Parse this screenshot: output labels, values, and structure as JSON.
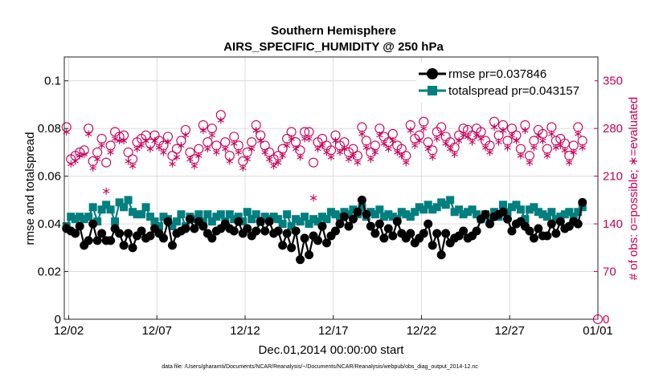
{
  "chart_data": {
    "type": "line",
    "title": "Southern Hemisphere",
    "subtitle": "AIRS_SPECIFIC_HUMIDITY @ 250 hPa",
    "xlabel": "Dec.01,2014 00:00:00 start",
    "ylabel_left": "rmse and totalspread",
    "ylabel_right": "# of obs: o=possible; ∗=evaluated",
    "footnote": "data file: /Users/gharamti/Documents/NCAR/Reanalysis/~/Documents/NCAR/Reanalysis/webpub/obs_diag_output_2014-12.nc",
    "x_ticks": [
      "12/02",
      "12/07",
      "12/12",
      "12/17",
      "12/22",
      "12/27",
      "01/01"
    ],
    "x_tick_days": [
      1,
      6,
      11,
      16,
      21,
      26,
      31
    ],
    "xlim_days": [
      0.75,
      31
    ],
    "ylim_left": [
      0,
      0.11
    ],
    "yticks_left": [
      "0",
      "0.02",
      "0.04",
      "0.06",
      "0.08",
      "0.1"
    ],
    "ylim_right": [
      0,
      385
    ],
    "yticks_right": [
      "0",
      "70",
      "140",
      "210",
      "280",
      "350"
    ],
    "grid": true,
    "legend_position": "top-right",
    "legend": [
      {
        "label": "rmse pr=0.037846",
        "color": "#000000",
        "marker": "circle"
      },
      {
        "label": "totalspread pr=0.043157",
        "color": "#007f7f",
        "marker": "square"
      }
    ],
    "colors": {
      "rmse": "#000000",
      "spread": "#007f7f",
      "obs": "#c8005a",
      "right_axis": "#c8005a"
    },
    "obs_step_days": 0.25,
    "obs_first_day": 0.875,
    "rmse": [
      0.038,
      0.037,
      0.036,
      0.039,
      0.031,
      0.033,
      0.04,
      0.033,
      0.036,
      0.033,
      0.033,
      0.038,
      0.036,
      0.031,
      0.036,
      0.03,
      0.035,
      0.037,
      0.034,
      0.035,
      0.038,
      0.036,
      0.034,
      0.041,
      0.031,
      0.036,
      0.037,
      0.038,
      0.042,
      0.038,
      0.041,
      0.039,
      0.036,
      0.034,
      0.037,
      0.038,
      0.04,
      0.038,
      0.037,
      0.041,
      0.036,
      0.038,
      0.035,
      0.037,
      0.041,
      0.037,
      0.041,
      0.036,
      0.037,
      0.031,
      0.036,
      0.03,
      0.037,
      0.025,
      0.034,
      0.027,
      0.035,
      0.033,
      0.039,
      0.032,
      0.035,
      0.037,
      0.04,
      0.043,
      0.039,
      0.042,
      0.045,
      0.05,
      0.044,
      0.039,
      0.036,
      0.04,
      0.034,
      0.038,
      0.035,
      0.041,
      0.036,
      0.034,
      0.036,
      0.032,
      0.034,
      0.036,
      0.04,
      0.031,
      0.036,
      0.027,
      0.036,
      0.032,
      0.034,
      0.035,
      0.037,
      0.034,
      0.035,
      0.037,
      0.042,
      0.044,
      0.04,
      0.043,
      0.044,
      0.045,
      0.042,
      0.037,
      0.04,
      0.041,
      0.039,
      0.037,
      0.034,
      0.038,
      0.035,
      0.035,
      0.04,
      0.036,
      0.041,
      0.038,
      0.039,
      0.041,
      0.04,
      0.049
    ],
    "totalspread": [
      0.039,
      0.043,
      0.042,
      0.043,
      0.042,
      0.043,
      0.047,
      0.041,
      0.046,
      0.048,
      0.046,
      0.041,
      0.049,
      0.047,
      0.05,
      0.045,
      0.044,
      0.044,
      0.047,
      0.043,
      0.041,
      0.039,
      0.043,
      0.042,
      0.039,
      0.041,
      0.044,
      0.039,
      0.043,
      0.042,
      0.044,
      0.041,
      0.044,
      0.041,
      0.043,
      0.044,
      0.041,
      0.044,
      0.042,
      0.043,
      0.041,
      0.045,
      0.042,
      0.044,
      0.041,
      0.043,
      0.042,
      0.043,
      0.042,
      0.04,
      0.044,
      0.039,
      0.042,
      0.041,
      0.043,
      0.04,
      0.042,
      0.041,
      0.043,
      0.042,
      0.045,
      0.044,
      0.043,
      0.045,
      0.044,
      0.046,
      0.044,
      0.047,
      0.043,
      0.045,
      0.044,
      0.046,
      0.043,
      0.044,
      0.043,
      0.042,
      0.045,
      0.044,
      0.043,
      0.045,
      0.047,
      0.046,
      0.048,
      0.046,
      0.047,
      0.049,
      0.048,
      0.05,
      0.045,
      0.046,
      0.044,
      0.045,
      0.046,
      0.044,
      0.042,
      0.044,
      0.041,
      0.045,
      0.043,
      0.048,
      0.045,
      0.047,
      0.048,
      0.046,
      0.042,
      0.046,
      0.047,
      0.045,
      0.044,
      0.043,
      0.045,
      0.042,
      0.043,
      0.044,
      0.045,
      0.043,
      0.045,
      0.047
    ],
    "obs_possible": [
      282,
      235,
      240,
      245,
      248,
      280,
      232,
      245,
      265,
      230,
      255,
      275,
      268,
      270,
      245,
      235,
      260,
      265,
      270,
      258,
      270,
      262,
      255,
      268,
      240,
      250,
      262,
      278,
      245,
      235,
      250,
      285,
      260,
      280,
      255,
      300,
      260,
      240,
      268,
      255,
      232,
      245,
      260,
      285,
      270,
      255,
      245,
      235,
      240,
      250,
      265,
      275,
      260,
      248,
      275,
      275,
      230,
      260,
      265,
      255,
      248,
      270,
      255,
      260,
      245,
      250,
      240,
      282,
      262,
      245,
      255,
      280,
      268,
      260,
      272,
      255,
      250,
      240,
      285,
      265,
      270,
      290,
      260,
      248,
      275,
      282,
      268,
      260,
      252,
      270,
      280,
      278,
      270,
      280,
      275,
      262,
      255,
      290,
      270,
      285,
      262,
      280,
      270,
      250,
      285,
      240,
      262,
      278,
      272,
      250,
      282,
      262,
      265,
      258,
      240,
      255,
      282,
      262
    ],
    "obs_evaluated": [
      275,
      228,
      232,
      240,
      242,
      272,
      222,
      235,
      255,
      188,
      245,
      265,
      262,
      262,
      232,
      225,
      250,
      255,
      262,
      250,
      262,
      252,
      245,
      260,
      228,
      238,
      255,
      270,
      235,
      225,
      240,
      277,
      250,
      270,
      245,
      292,
      250,
      232,
      258,
      245,
      222,
      235,
      250,
      277,
      262,
      245,
      235,
      225,
      230,
      240,
      255,
      265,
      250,
      238,
      265,
      265,
      178,
      250,
      255,
      245,
      238,
      262,
      245,
      250,
      235,
      240,
      230,
      272,
      252,
      235,
      245,
      270,
      258,
      250,
      262,
      245,
      240,
      230,
      277,
      255,
      262,
      280,
      250,
      238,
      265,
      272,
      258,
      250,
      242,
      262,
      270,
      268,
      260,
      270,
      265,
      252,
      245,
      282,
      260,
      277,
      252,
      270,
      262,
      240,
      277,
      230,
      252,
      270,
      262,
      240,
      272,
      252,
      255,
      248,
      230,
      245,
      272,
      252
    ]
  }
}
